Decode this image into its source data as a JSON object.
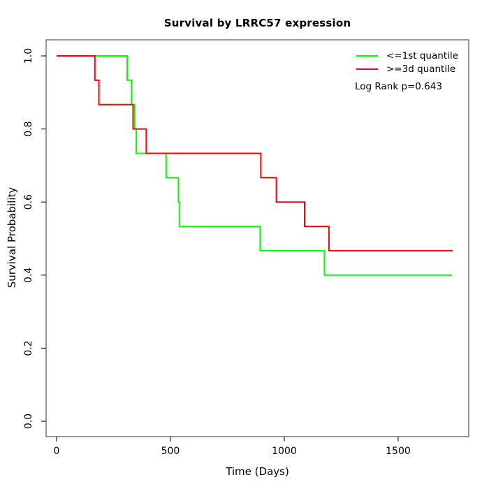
{
  "figure": {
    "title": "Survival by LRRC57 expression",
    "xlabel": "Time (Days)",
    "ylabel": "Survival Probability",
    "annotation": "Log Rank p=0.643"
  },
  "legend_items": [
    {
      "label": "<=1st quantile",
      "color": "#00ff00"
    },
    {
      "label": ">=3d quantile",
      "color": "#ff0000"
    }
  ],
  "chart_data": {
    "type": "line",
    "style": "kaplan-meier-step",
    "title": "Survival by LRRC57 expression",
    "xlabel": "Time (Days)",
    "ylabel": "Survival Probability",
    "xlim": [
      -46,
      1810
    ],
    "ylim": [
      -0.042,
      1.044
    ],
    "xticks": [
      "0",
      "500",
      "1000",
      "1500"
    ],
    "xtick_values": [
      0,
      500,
      1000,
      1500
    ],
    "yticks": [
      "0.0",
      "0.2",
      "0.4",
      "0.6",
      "0.8",
      "1.0"
    ],
    "ytick_values": [
      0.0,
      0.2,
      0.4,
      0.6,
      0.8,
      1.0
    ],
    "grid": false,
    "legend_position": "top-right",
    "annotation": "Log Rank p=0.643",
    "series": [
      {
        "name": "<=1st quantile",
        "color": "#00ff00",
        "x": [
          0,
          310,
          329,
          343,
          350,
          481,
          535,
          539,
          894,
          1176,
          1736
        ],
        "y": [
          1.0,
          0.9333,
          0.8667,
          0.8,
          0.7333,
          0.6667,
          0.6,
          0.5333,
          0.4667,
          0.4,
          0.4
        ]
      },
      {
        "name": ">=3d quantile",
        "color": "#ff0000",
        "x": [
          0,
          168,
          186,
          336,
          394,
          897,
          965,
          1089,
          1196,
          1740
        ],
        "y": [
          1.0,
          0.9333,
          0.8667,
          0.8,
          0.7333,
          0.6667,
          0.6,
          0.5333,
          0.4667,
          0.4667
        ]
      }
    ]
  }
}
